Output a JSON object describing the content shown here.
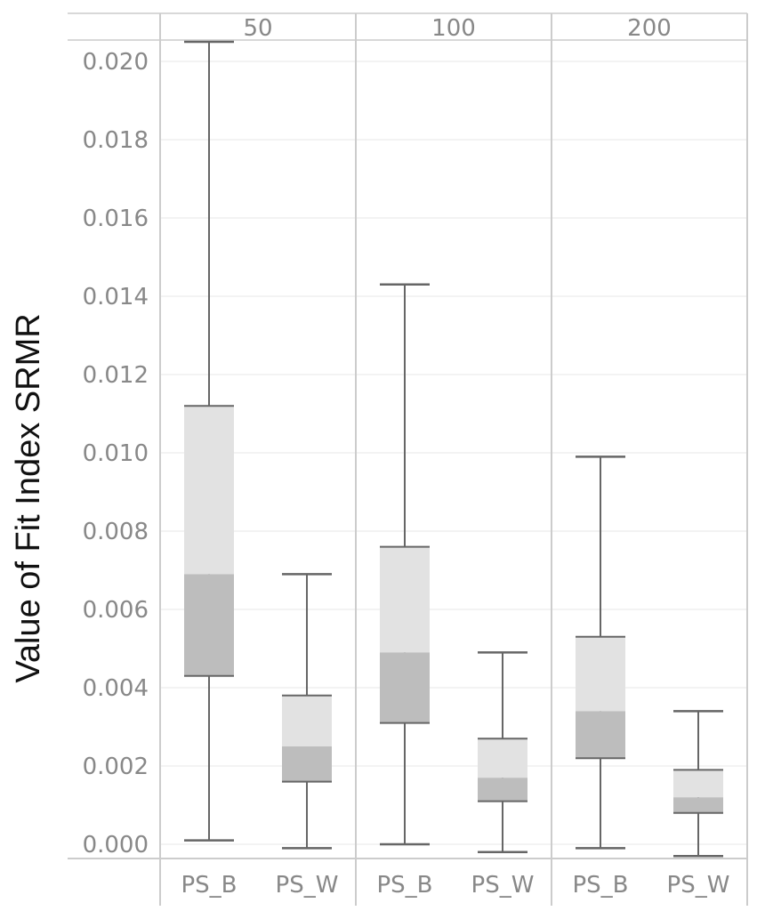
{
  "chart_data": {
    "type": "boxplot",
    "ylabel": "Value of Fit Index SRMR",
    "ylim": [
      -0.0005,
      0.0205
    ],
    "yticks": [
      "0.000",
      "0.002",
      "0.004",
      "0.006",
      "0.008",
      "0.010",
      "0.012",
      "0.014",
      "0.016",
      "0.018",
      "0.020"
    ],
    "ytick_values": [
      0,
      0.002,
      0.004,
      0.006,
      0.008,
      0.01,
      0.012,
      0.014,
      0.016,
      0.018,
      0.02
    ],
    "grid": true,
    "colors": {
      "upper_box": "#e2e2e2",
      "lower_box": "#bdbdbd",
      "whisker": "#666666",
      "grid": "#efefef",
      "panel_border": "#cccccc",
      "text": "#888888"
    },
    "panels": [
      {
        "label": "50",
        "boxes": [
          {
            "category": "PS_B",
            "min": 0.0001,
            "q1": 0.0043,
            "median": 0.0069,
            "q3": 0.0112,
            "max": 0.0205
          },
          {
            "category": "PS_W",
            "min": -0.0001,
            "q1": 0.0016,
            "median": 0.0025,
            "q3": 0.0038,
            "max": 0.0069
          }
        ]
      },
      {
        "label": "100",
        "boxes": [
          {
            "category": "PS_B",
            "min": 0.0,
            "q1": 0.0031,
            "median": 0.0049,
            "q3": 0.0076,
            "max": 0.0143
          },
          {
            "category": "PS_W",
            "min": -0.0002,
            "q1": 0.0011,
            "median": 0.0017,
            "q3": 0.0027,
            "max": 0.0049
          }
        ]
      },
      {
        "label": "200",
        "boxes": [
          {
            "category": "PS_B",
            "min": -0.0001,
            "q1": 0.0022,
            "median": 0.0034,
            "q3": 0.0053,
            "max": 0.0099
          },
          {
            "category": "PS_W",
            "min": -0.0003,
            "q1": 0.0008,
            "median": 0.0012,
            "q3": 0.0019,
            "max": 0.0034
          }
        ]
      }
    ]
  }
}
